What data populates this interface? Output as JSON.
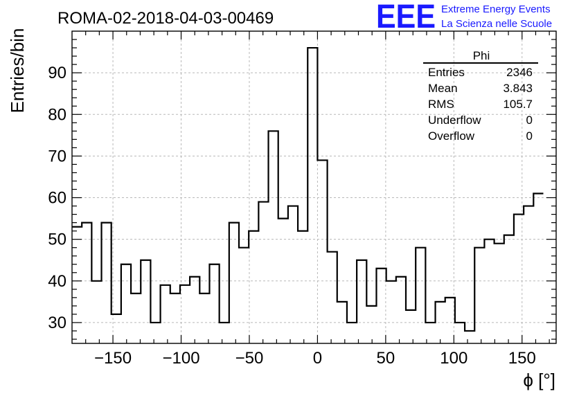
{
  "header": {
    "run_title": "ROMA-02-2018-04-03-00469",
    "logo_text": "EEE",
    "logo_line1": "Extreme Energy Events",
    "logo_line2": "La Scienza nelle Scuole",
    "logo_color": "#1a1aff"
  },
  "stats_box": {
    "title": "Phi",
    "rows": [
      {
        "label": "Entries",
        "value": "2346"
      },
      {
        "label": "Mean",
        "value": "3.843"
      },
      {
        "label": "RMS",
        "value": "105.7"
      },
      {
        "label": "Underflow",
        "value": "0"
      },
      {
        "label": "Overflow",
        "value": "0"
      }
    ]
  },
  "chart_data": {
    "type": "histogram",
    "title": "ROMA-02-2018-04-03-00469",
    "xlabel": "ϕ [°]",
    "ylabel": "Entries/bin",
    "xlim": [
      -180,
      175
    ],
    "ylim": [
      25,
      100
    ],
    "bin_edges_start": -180,
    "bin_width": 7.2,
    "values": [
      53,
      54,
      40,
      54,
      32,
      44,
      37,
      45,
      30,
      39,
      37,
      39,
      41,
      37,
      44,
      30,
      54,
      48,
      52,
      59,
      76,
      55,
      58,
      52,
      96,
      69,
      47,
      35,
      30,
      45,
      34,
      43,
      40,
      41,
      33,
      48,
      30,
      35,
      36,
      30,
      28,
      48,
      50,
      49,
      51,
      56,
      58,
      61
    ],
    "x_ticks": [
      -150,
      -100,
      -50,
      0,
      50,
      100,
      150
    ],
    "x_tick_labels": [
      "−150",
      "−100",
      "−50",
      "0",
      "50",
      "100",
      "150"
    ],
    "y_ticks": [
      30,
      40,
      50,
      60,
      70,
      80,
      90
    ],
    "y_tick_labels": [
      "30",
      "40",
      "50",
      "60",
      "70",
      "80",
      "90"
    ],
    "grid": true,
    "legend": "top-right"
  }
}
